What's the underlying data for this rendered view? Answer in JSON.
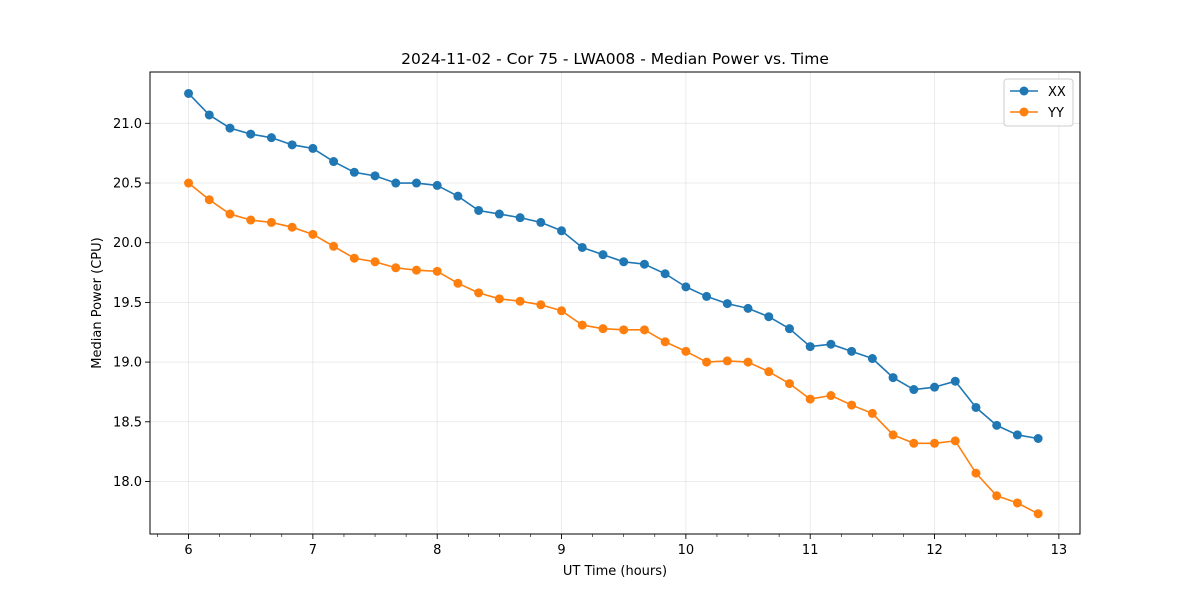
{
  "chart_data": {
    "type": "line",
    "title": "2024-11-02 - Cor 75 - LWA008 - Median Power vs. Time",
    "xlabel": "UT Time (hours)",
    "ylabel": "Median Power (CPU)",
    "xlim": [
      5.69,
      13.17
    ],
    "ylim": [
      17.56,
      21.43
    ],
    "xticks": [
      6,
      7,
      8,
      9,
      10,
      11,
      12,
      13
    ],
    "xtick_labels": [
      "6",
      "7",
      "8",
      "9",
      "10",
      "11",
      "12",
      "13"
    ],
    "xminor_step": 0.25,
    "yticks": [
      18.0,
      18.5,
      19.0,
      19.5,
      20.0,
      20.5,
      21.0
    ],
    "ytick_labels": [
      "18.0",
      "18.5",
      "19.0",
      "19.5",
      "20.0",
      "20.5",
      "21.0"
    ],
    "grid": true,
    "legend_position": "top-right",
    "x": [
      6.0,
      6.1667,
      6.3333,
      6.5,
      6.6667,
      6.8333,
      7.0,
      7.1667,
      7.3333,
      7.5,
      7.6667,
      7.8333,
      8.0,
      8.1667,
      8.3333,
      8.5,
      8.6667,
      8.8333,
      9.0,
      9.1667,
      9.3333,
      9.5,
      9.6667,
      9.8333,
      10.0,
      10.1667,
      10.3333,
      10.5,
      10.6667,
      10.8333,
      11.0,
      11.1667,
      11.3333,
      11.5,
      11.6667,
      11.8333,
      12.0,
      12.1667,
      12.3333,
      12.5,
      12.6667,
      12.8333
    ],
    "series": [
      {
        "name": "XX",
        "color": "#1f77b4",
        "values": [
          21.25,
          21.07,
          20.96,
          20.91,
          20.88,
          20.82,
          20.79,
          20.68,
          20.59,
          20.56,
          20.5,
          20.5,
          20.48,
          20.39,
          20.27,
          20.24,
          20.21,
          20.17,
          20.1,
          19.96,
          19.9,
          19.84,
          19.82,
          19.74,
          19.63,
          19.55,
          19.49,
          19.45,
          19.38,
          19.28,
          19.13,
          19.15,
          19.09,
          19.03,
          18.87,
          18.77,
          18.79,
          18.84,
          18.62,
          18.47,
          18.39,
          18.36
        ]
      },
      {
        "name": "YY",
        "color": "#ff7f0e",
        "values": [
          20.5,
          20.36,
          20.24,
          20.19,
          20.17,
          20.13,
          20.07,
          19.97,
          19.87,
          19.84,
          19.79,
          19.77,
          19.76,
          19.66,
          19.58,
          19.53,
          19.51,
          19.48,
          19.43,
          19.31,
          19.28,
          19.27,
          19.27,
          19.17,
          19.09,
          19.0,
          19.01,
          19.0,
          18.92,
          18.82,
          18.69,
          18.72,
          18.64,
          18.57,
          18.39,
          18.32,
          18.32,
          18.34,
          18.07,
          17.88,
          17.82,
          17.73
        ]
      }
    ]
  }
}
